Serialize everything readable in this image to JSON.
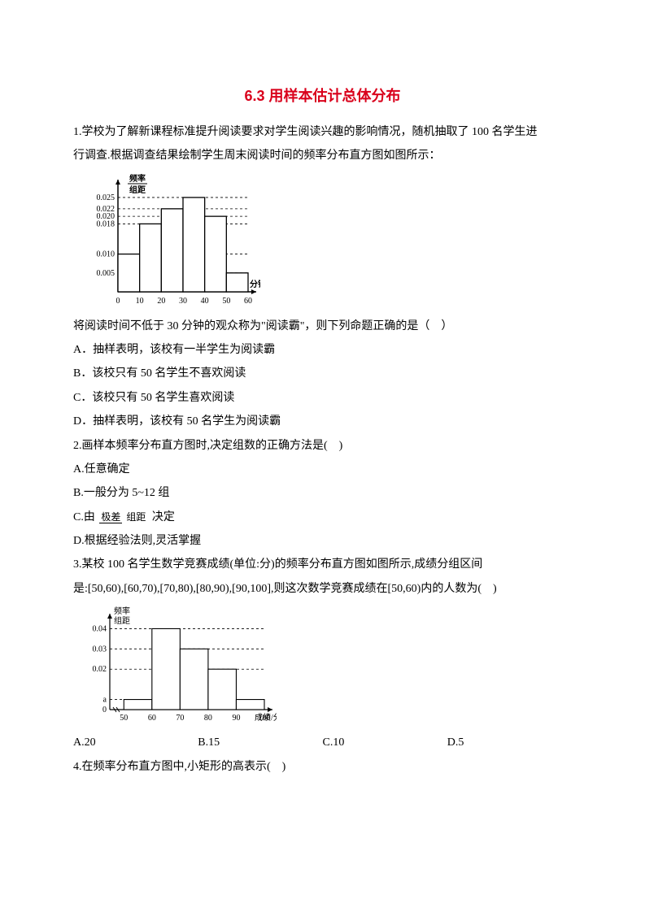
{
  "title": "6.3 用样本估计总体分布",
  "title_color": "#d9001b",
  "text_color": "#000000",
  "bg_color": "#ffffff",
  "q1": {
    "intro_l1": "1.学校为了解新课程标准提升阅读要求对学生阅读兴趣的影响情况，随机抽取了 100 名学生进",
    "intro_l2": "行调查.根据调查结果绘制学生周末阅读时间的频率分布直方图如图所示：",
    "stem": "将阅读时间不低于 30 分钟的观众称为\"阅读霸\"，则下列命题正确的是（　）",
    "optA": "A．抽样表明，该校有一半学生为阅读霸",
    "optB": "B．该校只有 50 名学生不喜欢阅读",
    "optC": "C．该校只有 50 名学生喜欢阅读",
    "optD": "D．抽样表明，该校有 50 名学生为阅读霸"
  },
  "chart1": {
    "type": "histogram",
    "ylabel_top": "频率",
    "ylabel_bottom": "组距",
    "xlabel": "分钟",
    "x_ticks": [
      0,
      10,
      20,
      30,
      40,
      50,
      60
    ],
    "y_ticks": [
      0.005,
      0.01,
      0.018,
      0.02,
      0.022,
      0.025
    ],
    "bars": [
      {
        "x0": 0,
        "x1": 10,
        "y": 0.01
      },
      {
        "x0": 10,
        "x1": 20,
        "y": 0.018
      },
      {
        "x0": 20,
        "x1": 30,
        "y": 0.022
      },
      {
        "x0": 30,
        "x1": 40,
        "y": 0.025
      },
      {
        "x0": 40,
        "x1": 50,
        "y": 0.02
      },
      {
        "x0": 50,
        "x1": 60,
        "y": 0.005
      }
    ],
    "xlim": [
      0,
      60
    ],
    "ylim": [
      0,
      0.028
    ],
    "axis_color": "#000000",
    "dash_color": "#000000",
    "bar_stroke": "#000000",
    "bar_fill": "#ffffff",
    "font_size": 10
  },
  "q2": {
    "stem": "2.画样本频率分布直方图时,决定组数的正确方法是(　)",
    "optA": "A.任意确定",
    "optB": "B.一般分为 5~12 组",
    "optC_prefix": "C.由",
    "optC_num": "极差",
    "optC_den": "组距",
    "optC_suffix": "决定",
    "optD": "D.根据经验法则,灵活掌握"
  },
  "q3": {
    "l1": "3.某校 100 名学生数学竞赛成绩(单位:分)的频率分布直方图如图所示,成绩分组区间",
    "l2": "是:[50,60),[60,70),[70,80),[80,90),[90,100],则这次数学竞赛成绩在[50,60)内的人数为(　)",
    "optA": "A.20",
    "optB": "B.15",
    "optC": "C.10",
    "optD": "D.5"
  },
  "chart2": {
    "type": "histogram",
    "ylabel_top": "频率",
    "ylabel_bottom": "组距",
    "xlabel": "成绩/分",
    "x_ticks": [
      50,
      60,
      70,
      80,
      90,
      100
    ],
    "y_ticks": [
      "0.04",
      "0.03",
      "0.02",
      "a",
      "0"
    ],
    "y_vals": [
      0.04,
      0.03,
      0.02,
      0.005,
      0
    ],
    "bars": [
      {
        "x0": 50,
        "x1": 60,
        "y": 0.005
      },
      {
        "x0": 60,
        "x1": 70,
        "y": 0.04
      },
      {
        "x0": 70,
        "x1": 80,
        "y": 0.03
      },
      {
        "x0": 80,
        "x1": 90,
        "y": 0.02
      },
      {
        "x0": 90,
        "x1": 100,
        "y": 0.005
      }
    ],
    "xlim": [
      50,
      100
    ],
    "ylim": [
      0,
      0.045
    ],
    "axis_color": "#000000",
    "dash_color": "#000000",
    "bar_stroke": "#000000",
    "bar_fill": "#ffffff",
    "font_size": 10
  },
  "q4": {
    "stem": "4.在频率分布直方图中,小矩形的高表示(　)"
  }
}
